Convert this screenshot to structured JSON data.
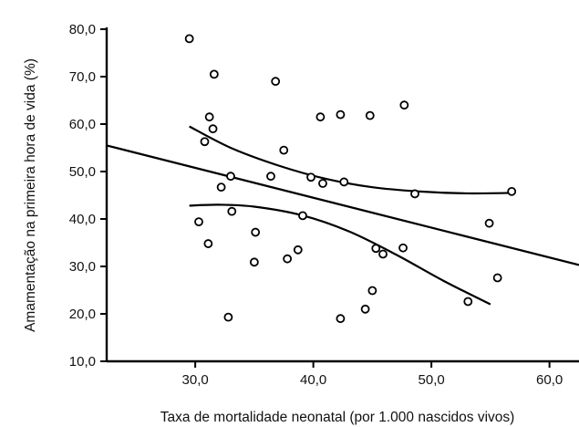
{
  "chart_data": {
    "type": "scatter",
    "xlabel": "Taxa de mortalidade neonatal (por 1.000 nascidos vivos)",
    "ylabel": "Amamentação na primeira hora de vida (%)",
    "xlim": [
      22.5,
      62.5
    ],
    "ylim": [
      10,
      80
    ],
    "x_ticks": [
      "30,0",
      "40,0",
      "50,0",
      "60,0"
    ],
    "x_tick_values": [
      30,
      40,
      50,
      60
    ],
    "y_ticks": [
      "10,0",
      "20,0",
      "30,0",
      "40,0",
      "50,0",
      "60,0",
      "70,0",
      "80,0"
    ],
    "y_tick_values": [
      10,
      20,
      30,
      40,
      50,
      60,
      70,
      80
    ],
    "grid": false,
    "legend": "none",
    "points": [
      {
        "x": 29.5,
        "y": 78.0
      },
      {
        "x": 31.6,
        "y": 70.5
      },
      {
        "x": 36.8,
        "y": 69.0
      },
      {
        "x": 47.7,
        "y": 64.0
      },
      {
        "x": 42.3,
        "y": 62.0
      },
      {
        "x": 44.8,
        "y": 61.8
      },
      {
        "x": 40.6,
        "y": 61.5
      },
      {
        "x": 31.2,
        "y": 61.5
      },
      {
        "x": 31.5,
        "y": 59.0
      },
      {
        "x": 30.8,
        "y": 56.3
      },
      {
        "x": 37.5,
        "y": 54.5
      },
      {
        "x": 33.0,
        "y": 49.0
      },
      {
        "x": 36.4,
        "y": 49.0
      },
      {
        "x": 39.8,
        "y": 48.8
      },
      {
        "x": 42.6,
        "y": 47.8
      },
      {
        "x": 40.8,
        "y": 47.5
      },
      {
        "x": 32.2,
        "y": 46.7
      },
      {
        "x": 56.8,
        "y": 45.8
      },
      {
        "x": 48.6,
        "y": 45.3
      },
      {
        "x": 33.1,
        "y": 41.6
      },
      {
        "x": 39.1,
        "y": 40.7
      },
      {
        "x": 30.3,
        "y": 39.4
      },
      {
        "x": 54.9,
        "y": 39.1
      },
      {
        "x": 35.1,
        "y": 37.2
      },
      {
        "x": 31.1,
        "y": 34.8
      },
      {
        "x": 45.3,
        "y": 33.8
      },
      {
        "x": 47.6,
        "y": 33.9
      },
      {
        "x": 38.7,
        "y": 33.5
      },
      {
        "x": 45.9,
        "y": 32.6
      },
      {
        "x": 37.8,
        "y": 31.6
      },
      {
        "x": 35.0,
        "y": 30.9
      },
      {
        "x": 55.6,
        "y": 27.6
      },
      {
        "x": 45.0,
        "y": 24.9
      },
      {
        "x": 53.1,
        "y": 22.6
      },
      {
        "x": 44.4,
        "y": 21.0
      },
      {
        "x": 32.8,
        "y": 19.3
      },
      {
        "x": 42.3,
        "y": 19.0
      }
    ],
    "regression_line": [
      {
        "x": 22.5,
        "y": 55.5
      },
      {
        "x": 62.5,
        "y": 30.3
      }
    ],
    "upper_confidence_band": [
      {
        "x": 29.5,
        "y": 59.5
      },
      {
        "x": 33.0,
        "y": 55.0
      },
      {
        "x": 37.0,
        "y": 51.3
      },
      {
        "x": 41.0,
        "y": 48.5
      },
      {
        "x": 45.0,
        "y": 46.7
      },
      {
        "x": 49.0,
        "y": 45.8
      },
      {
        "x": 53.0,
        "y": 45.4
      },
      {
        "x": 57.0,
        "y": 45.5
      }
    ],
    "lower_confidence_band": [
      {
        "x": 29.5,
        "y": 42.8
      },
      {
        "x": 32.0,
        "y": 43.0
      },
      {
        "x": 35.0,
        "y": 42.6
      },
      {
        "x": 39.0,
        "y": 40.8
      },
      {
        "x": 43.0,
        "y": 37.4
      },
      {
        "x": 47.0,
        "y": 32.5
      },
      {
        "x": 51.0,
        "y": 27.0
      },
      {
        "x": 55.0,
        "y": 22.0
      }
    ]
  }
}
